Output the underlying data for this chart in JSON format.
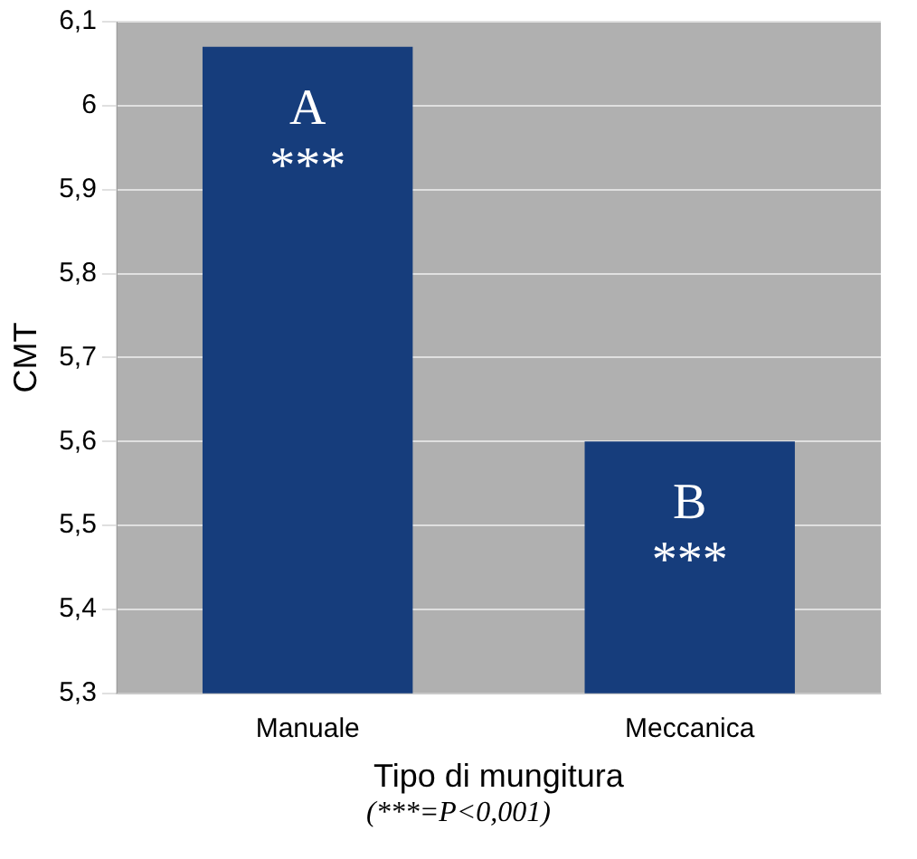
{
  "chart_data": {
    "type": "bar",
    "categories": [
      "Manuale",
      "Meccanica"
    ],
    "values": [
      6.07,
      5.6
    ],
    "color": "#163d7c",
    "ylim": [
      5.3,
      6.1
    ],
    "yticks": [
      {
        "value": 5.3,
        "label": "5,3"
      },
      {
        "value": 5.4,
        "label": "5,4"
      },
      {
        "value": 5.5,
        "label": "5,5"
      },
      {
        "value": 5.6,
        "label": "5,6"
      },
      {
        "value": 5.7,
        "label": "5,7"
      },
      {
        "value": 5.8,
        "label": "5,8"
      },
      {
        "value": 5.9,
        "label": "5,9"
      },
      6,
      {
        "value": 6.1,
        "label": "6,1"
      }
    ],
    "ylabel": "CMT",
    "xlabel": "Tipo di mungitura",
    "grid": "y",
    "legend": false,
    "annotations": [
      {
        "text": "A",
        "x": "Manuale",
        "y": 6.07
      },
      {
        "text": "***",
        "x": "Manuale",
        "y": 6.07
      },
      {
        "text": "B",
        "x": "Meccanica",
        "y": 5.6
      },
      {
        "text": "***",
        "x": "Meccanica",
        "y": 5.6
      },
      "(***=P<0,001)"
    ]
  }
}
